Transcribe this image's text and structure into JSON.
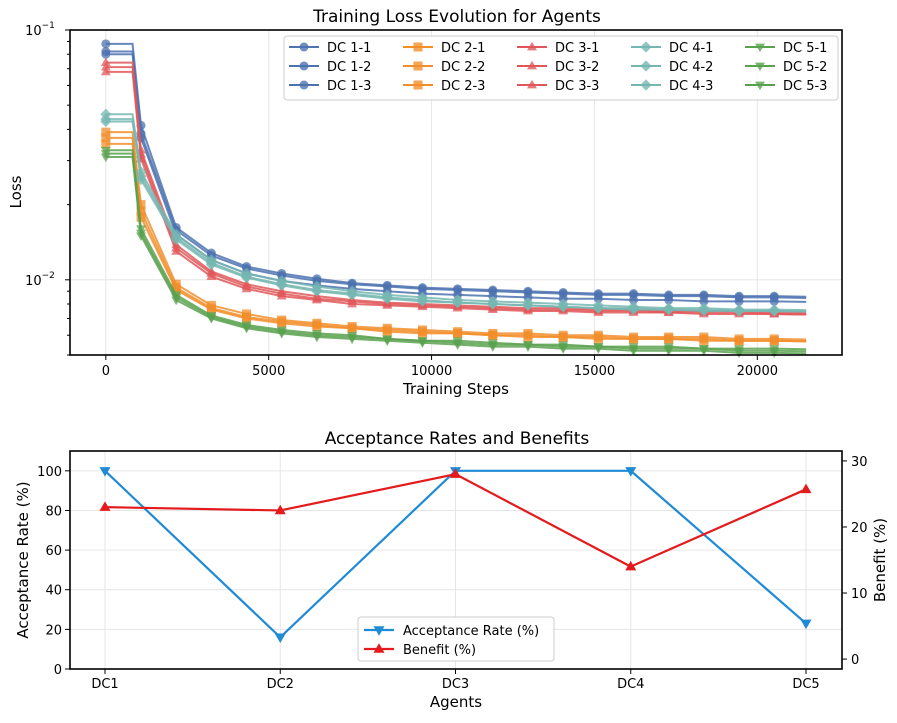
{
  "chart_data": [
    {
      "type": "line",
      "title": "Training Loss Evolution for Agents",
      "xlabel": "Training Steps",
      "ylabel": "Loss",
      "xlim": [
        -1100,
        22600
      ],
      "ylim": [
        0.005,
        0.1
      ],
      "yscale": "log",
      "grid": true,
      "legend_position": "top-right",
      "xticks": [
        0,
        5000,
        10000,
        15000,
        20000
      ],
      "xtick_labels": [
        "0",
        "5000",
        "10000",
        "15000",
        "20000"
      ],
      "ytick_major_labels": [
        {
          "value": 0.1,
          "base": "10",
          "exp": "−1"
        },
        {
          "value": 0.01,
          "base": "10",
          "exp": "−2"
        }
      ],
      "series_x": [
        0,
        1080,
        2160,
        3240,
        4320,
        5400,
        6480,
        7560,
        8640,
        9720,
        10800,
        11880,
        12960,
        14040,
        15120,
        16200,
        17280,
        18360,
        19440,
        20520
      ],
      "series": [
        {
          "name": "DC 1-1",
          "color": "#4c72b0",
          "marker": "circle",
          "start": 0.088,
          "values": [
            0.088,
            0.0415,
            0.0162,
            0.0128,
            0.0113,
            0.0106,
            0.0101,
            0.0097,
            0.0095,
            0.0093,
            0.0092,
            0.0091,
            0.009,
            0.0089,
            0.0088,
            0.0088,
            0.0087,
            0.0087,
            0.0086,
            0.0086
          ]
        },
        {
          "name": "DC 1-2",
          "color": "#4c72b0",
          "marker": "circle",
          "start": 0.082,
          "values": [
            0.082,
            0.0385,
            0.0158,
            0.0125,
            0.0111,
            0.0104,
            0.0099,
            0.0096,
            0.0094,
            0.0092,
            0.0091,
            0.009,
            0.0089,
            0.0088,
            0.0087,
            0.0087,
            0.0086,
            0.0086,
            0.0085,
            0.0085
          ]
        },
        {
          "name": "DC 1-3",
          "color": "#4c72b0",
          "marker": "circle",
          "start": 0.08,
          "values": [
            0.08,
            0.037,
            0.0152,
            0.012,
            0.0106,
            0.0099,
            0.0095,
            0.0092,
            0.009,
            0.0088,
            0.0087,
            0.0086,
            0.0085,
            0.0084,
            0.0084,
            0.0083,
            0.0083,
            0.0082,
            0.0082,
            0.0082
          ]
        },
        {
          "name": "DC 2-1",
          "color": "#f28e2b",
          "marker": "square",
          "start": 0.039,
          "values": [
            0.039,
            0.02,
            0.0096,
            0.0079,
            0.0073,
            0.0069,
            0.0067,
            0.0065,
            0.0064,
            0.0063,
            0.0062,
            0.0061,
            0.0061,
            0.006,
            0.006,
            0.0059,
            0.0059,
            0.0059,
            0.0058,
            0.0058
          ]
        },
        {
          "name": "DC 2-2",
          "color": "#f28e2b",
          "marker": "square",
          "start": 0.037,
          "values": [
            0.037,
            0.0188,
            0.0093,
            0.0077,
            0.0071,
            0.0068,
            0.0066,
            0.0064,
            0.0063,
            0.0062,
            0.0061,
            0.006,
            0.006,
            0.0059,
            0.0059,
            0.0058,
            0.0058,
            0.0058,
            0.0057,
            0.0057
          ]
        },
        {
          "name": "DC 2-3",
          "color": "#f28e2b",
          "marker": "square",
          "start": 0.035,
          "values": [
            0.035,
            0.0178,
            0.0091,
            0.0076,
            0.007,
            0.0067,
            0.0065,
            0.0064,
            0.0062,
            0.0061,
            0.0061,
            0.006,
            0.0059,
            0.0059,
            0.0058,
            0.0058,
            0.0058,
            0.0057,
            0.0057,
            0.0057
          ]
        },
        {
          "name": "DC 3-1",
          "color": "#e15759",
          "marker": "triangle-up",
          "start": 0.074,
          "values": [
            0.074,
            0.033,
            0.0138,
            0.0108,
            0.0096,
            0.009,
            0.0086,
            0.0083,
            0.0081,
            0.008,
            0.0079,
            0.0078,
            0.0077,
            0.0077,
            0.0076,
            0.0076,
            0.0075,
            0.0075,
            0.0075,
            0.0074
          ]
        },
        {
          "name": "DC 3-2",
          "color": "#e15759",
          "marker": "triangle-up",
          "start": 0.071,
          "values": [
            0.071,
            0.0318,
            0.0134,
            0.0106,
            0.0094,
            0.0088,
            0.0084,
            0.0082,
            0.008,
            0.0079,
            0.0078,
            0.0077,
            0.0076,
            0.0076,
            0.0075,
            0.0075,
            0.0074,
            0.0074,
            0.0074,
            0.0073
          ]
        },
        {
          "name": "DC 3-3",
          "color": "#e15759",
          "marker": "triangle-up",
          "start": 0.068,
          "values": [
            0.068,
            0.0305,
            0.013,
            0.0103,
            0.0092,
            0.0086,
            0.0083,
            0.008,
            0.0079,
            0.0078,
            0.0077,
            0.0076,
            0.0075,
            0.0075,
            0.0074,
            0.0074,
            0.0074,
            0.0073,
            0.0073,
            0.0073
          ]
        },
        {
          "name": "DC 4-1",
          "color": "#76b7b2",
          "marker": "diamond",
          "start": 0.046,
          "values": [
            0.046,
            0.027,
            0.0152,
            0.012,
            0.0106,
            0.0099,
            0.0094,
            0.009,
            0.0087,
            0.0085,
            0.0083,
            0.0082,
            0.0081,
            0.008,
            0.0079,
            0.0078,
            0.0077,
            0.0077,
            0.0076,
            0.0076
          ]
        },
        {
          "name": "DC 4-2",
          "color": "#76b7b2",
          "marker": "diamond",
          "start": 0.044,
          "values": [
            0.044,
            0.026,
            0.0148,
            0.0117,
            0.0103,
            0.0096,
            0.0091,
            0.0088,
            0.0085,
            0.0083,
            0.0081,
            0.008,
            0.0079,
            0.0078,
            0.0077,
            0.0077,
            0.0076,
            0.0076,
            0.0075,
            0.0075
          ]
        },
        {
          "name": "DC 4-3",
          "color": "#76b7b2",
          "marker": "diamond",
          "start": 0.043,
          "values": [
            0.043,
            0.0252,
            0.0145,
            0.0115,
            0.0102,
            0.0095,
            0.009,
            0.0087,
            0.0084,
            0.0082,
            0.0081,
            0.008,
            0.0079,
            0.0078,
            0.0077,
            0.0076,
            0.0076,
            0.0075,
            0.0075,
            0.0075
          ]
        },
        {
          "name": "DC 5-1",
          "color": "#59a14f",
          "marker": "triangle-down",
          "start": 0.033,
          "values": [
            0.033,
            0.016,
            0.0087,
            0.0072,
            0.0066,
            0.0063,
            0.0061,
            0.006,
            0.0058,
            0.0057,
            0.0057,
            0.0056,
            0.0055,
            0.0055,
            0.0054,
            0.0054,
            0.0054,
            0.0053,
            0.0053,
            0.0053
          ]
        },
        {
          "name": "DC 5-2",
          "color": "#59a14f",
          "marker": "triangle-down",
          "start": 0.032,
          "values": [
            0.032,
            0.0154,
            0.0085,
            0.0071,
            0.0065,
            0.0062,
            0.006,
            0.0059,
            0.0058,
            0.0057,
            0.0056,
            0.0055,
            0.0055,
            0.0054,
            0.0054,
            0.0053,
            0.0053,
            0.0053,
            0.0052,
            0.0052
          ]
        },
        {
          "name": "DC 5-3",
          "color": "#59a14f",
          "marker": "triangle-down",
          "start": 0.031,
          "values": [
            0.031,
            0.015,
            0.0083,
            0.007,
            0.0064,
            0.0061,
            0.0059,
            0.0058,
            0.0057,
            0.0056,
            0.0055,
            0.0054,
            0.0054,
            0.0053,
            0.0053,
            0.0052,
            0.0052,
            0.0052,
            0.0051,
            0.0051
          ]
        }
      ]
    },
    {
      "type": "line",
      "title": "Acceptance Rates and Benefits",
      "xlabel": "Agents",
      "ylabel": "Acceptance Rate (%)",
      "ylabel_right": "Benefit (%)",
      "categories": [
        "DC1",
        "DC2",
        "DC3",
        "DC4",
        "DC5"
      ],
      "ylim": [
        0,
        110
      ],
      "ylim_right": [
        -1.5,
        31.5
      ],
      "yticks": [
        0,
        20,
        40,
        60,
        80,
        100
      ],
      "yticks_right": [
        0,
        10,
        20,
        30
      ],
      "grid": true,
      "legend_position": "lower-center",
      "series": [
        {
          "name": "Acceptance Rate (%)",
          "axis": "left",
          "color": "#1f8ad6",
          "marker": "triangle-down",
          "values": [
            100,
            16,
            100,
            100,
            23
          ]
        },
        {
          "name": "Benefit (%)",
          "axis": "right",
          "color": "#e41a1c",
          "marker": "triangle-up",
          "values": [
            23,
            22.5,
            28,
            14,
            25.7
          ]
        }
      ]
    }
  ]
}
